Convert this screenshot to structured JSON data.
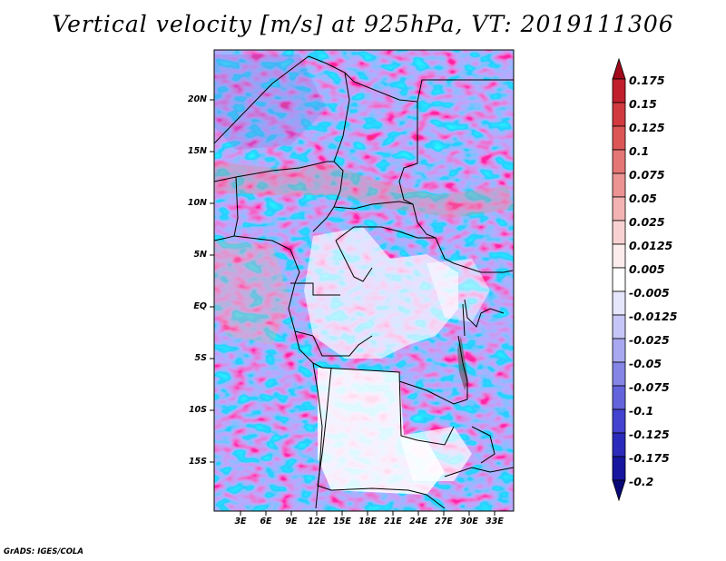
{
  "title": "Vertical velocity [m/s] at 925hPa, VT: 2019111306",
  "credit": "GrADS: IGES/COLA",
  "map": {
    "lat_labels": [
      "20N",
      "15N",
      "10N",
      "5N",
      "EQ",
      "5S",
      "10S",
      "15S"
    ],
    "lon_labels": [
      "3E",
      "6E",
      "9E",
      "12E",
      "15E",
      "18E",
      "21E",
      "24E",
      "27E",
      "30E",
      "33E"
    ]
  },
  "colorbar": {
    "labels": [
      "0.175",
      "0.15",
      "0.125",
      "0.1",
      "0.075",
      "0.05",
      "0.025",
      "0.0125",
      "0.005",
      "-0.005",
      "-0.0125",
      "-0.025",
      "-0.05",
      "-0.075",
      "-0.1",
      "-0.125",
      "-0.175",
      "-0.2"
    ],
    "colors": [
      "#a10a1a",
      "#c0202b",
      "#d13a3f",
      "#dd5656",
      "#e57676",
      "#ec9393",
      "#f3b3b3",
      "#f8d2d2",
      "#fcecec",
      "#ffffff",
      "#e5e5fb",
      "#c6c6f6",
      "#a8a8f0",
      "#8585e6",
      "#6363dc",
      "#4343cf",
      "#2b2bbb",
      "#16169e",
      "#080878"
    ]
  }
}
